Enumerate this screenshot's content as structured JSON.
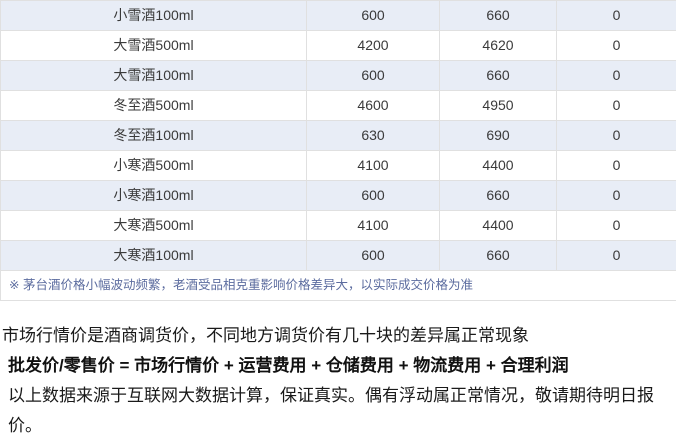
{
  "page": {
    "background": "#ffffff"
  },
  "table": {
    "rows": [
      [
        "小雪酒100ml",
        "600",
        "660",
        "0"
      ],
      [
        "大雪酒500ml",
        "4200",
        "4620",
        "0"
      ],
      [
        "大雪酒100ml",
        "600",
        "660",
        "0"
      ],
      [
        "冬至酒500ml",
        "4600",
        "4950",
        "0"
      ],
      [
        "冬至酒100ml",
        "630",
        "690",
        "0"
      ],
      [
        "小寒酒500ml",
        "4100",
        "4400",
        "0"
      ],
      [
        "小寒酒100ml",
        "600",
        "660",
        "0"
      ],
      [
        "大寒酒500ml",
        "4100",
        "4400",
        "0"
      ],
      [
        "大寒酒100ml",
        "600",
        "660",
        "0"
      ]
    ],
    "note": "※ 茅台酒价格小幅波动频繁，老酒受品相克重影响价格差异大，以实际成交价格为准",
    "colors": {
      "zebra_row_background": "#e8edf6",
      "row_background": "#ffffff",
      "border": "#e0e0e0",
      "cell_text": "#3a3a3a",
      "note_text": "#5c6c9f"
    }
  },
  "footer": {
    "intro": "市场行情价是酒商调货价，不同地方调货价有几十块的差异属正常现象",
    "formula": "批发价/零售价 = 市场行情价 + 运营费用 + 仓储费用 + 物流费用 + 合理利润",
    "disclaimer": "以上数据来源于互联网大数据计算，保证真实。偶有浮动属正常情况，敬请期待明日报价。",
    "text_color": "#1a1a1a"
  }
}
